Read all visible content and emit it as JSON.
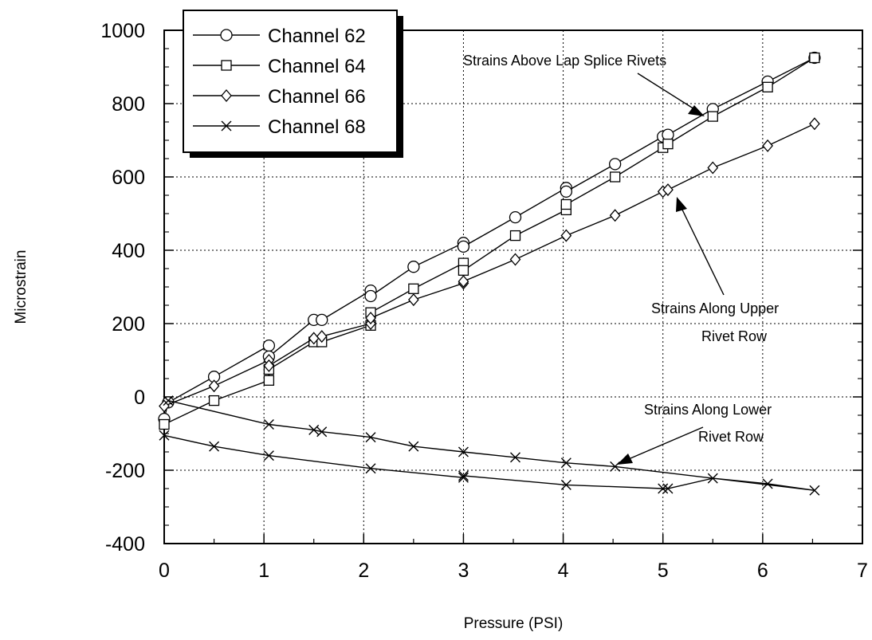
{
  "chart_data": {
    "type": "line",
    "xlabel": "Pressure  (PSI)",
    "ylabel": "Microstrain",
    "xlim": [
      0,
      7
    ],
    "ylim": [
      -400,
      1000
    ],
    "x_ticks": [
      "0",
      "1",
      "2",
      "3",
      "4",
      "5",
      "6",
      "7"
    ],
    "y_ticks": [
      "1000",
      "800",
      "600",
      "400",
      "200",
      "0",
      "-200",
      "-400"
    ],
    "grid": true,
    "legend_position": "top-left",
    "series": [
      {
        "name": "Channel 62",
        "marker": "circle",
        "points": [
          [
            0,
            -60
          ],
          [
            0.04,
            -15
          ],
          [
            0.5,
            55
          ],
          [
            1.05,
            140
          ],
          [
            1.05,
            110
          ],
          [
            1.5,
            210
          ],
          [
            1.58,
            210
          ],
          [
            2.07,
            290
          ],
          [
            2.07,
            275
          ],
          [
            2.5,
            355
          ],
          [
            3,
            420
          ],
          [
            3,
            410
          ],
          [
            3.52,
            490
          ],
          [
            4.03,
            570
          ],
          [
            4.03,
            560
          ],
          [
            4.52,
            635
          ],
          [
            5,
            710
          ],
          [
            5.05,
            715
          ],
          [
            5.5,
            785
          ],
          [
            6.05,
            860
          ],
          [
            6.52,
            925
          ]
        ]
      },
      {
        "name": "Channel 64",
        "marker": "square",
        "points": [
          [
            0,
            -75
          ],
          [
            0.5,
            -10
          ],
          [
            1.05,
            45
          ],
          [
            1.05,
            75
          ],
          [
            1.5,
            150
          ],
          [
            1.58,
            150
          ],
          [
            2.07,
            195
          ],
          [
            2.07,
            230
          ],
          [
            2.5,
            295
          ],
          [
            3,
            365
          ],
          [
            3,
            345
          ],
          [
            3.52,
            440
          ],
          [
            4.03,
            510
          ],
          [
            4.03,
            525
          ],
          [
            4.52,
            600
          ],
          [
            5,
            680
          ],
          [
            5.05,
            690
          ],
          [
            5.5,
            765
          ],
          [
            6.05,
            845
          ],
          [
            6.52,
            925
          ]
        ]
      },
      {
        "name": "Channel 66",
        "marker": "diamond",
        "points": [
          [
            0,
            -25
          ],
          [
            0.5,
            30
          ],
          [
            1.05,
            100
          ],
          [
            1.05,
            85
          ],
          [
            1.5,
            160
          ],
          [
            1.58,
            165
          ],
          [
            2.07,
            200
          ],
          [
            2.07,
            215
          ],
          [
            2.5,
            265
          ],
          [
            3,
            310
          ],
          [
            3,
            315
          ],
          [
            3.52,
            375
          ],
          [
            4.03,
            440
          ],
          [
            4.52,
            495
          ],
          [
            5,
            560
          ],
          [
            5.05,
            565
          ],
          [
            5.5,
            625
          ],
          [
            6.05,
            685
          ],
          [
            6.52,
            745
          ]
        ]
      },
      {
        "name": "Channel 68",
        "marker": "x",
        "points": [
          [
            0,
            -105
          ],
          [
            0.5,
            -135
          ],
          [
            1.05,
            -160
          ],
          [
            2.07,
            -195
          ],
          [
            3,
            -220
          ],
          [
            3,
            -215
          ],
          [
            4.03,
            -240
          ],
          [
            5,
            -250
          ],
          [
            5.05,
            -250
          ],
          [
            5.5,
            -222
          ],
          [
            6.05,
            -237
          ],
          [
            6.52,
            -255
          ],
          [
            4.52,
            -190
          ],
          [
            4.03,
            -180
          ],
          [
            3.52,
            -165
          ],
          [
            3,
            -150
          ],
          [
            2.5,
            -135
          ],
          [
            2.07,
            -110
          ],
          [
            1.58,
            -95
          ],
          [
            1.5,
            -90
          ],
          [
            1.05,
            -75
          ],
          [
            0.04,
            -10
          ]
        ]
      }
    ],
    "annotations": [
      {
        "text": [
          "Strains Above Lap Splice Rivets"
        ]
      },
      {
        "text": [
          "Strains Along Upper",
          "Rivet Row"
        ]
      },
      {
        "text": [
          "Strains Along Lower",
          "Rivet Row"
        ]
      }
    ]
  }
}
